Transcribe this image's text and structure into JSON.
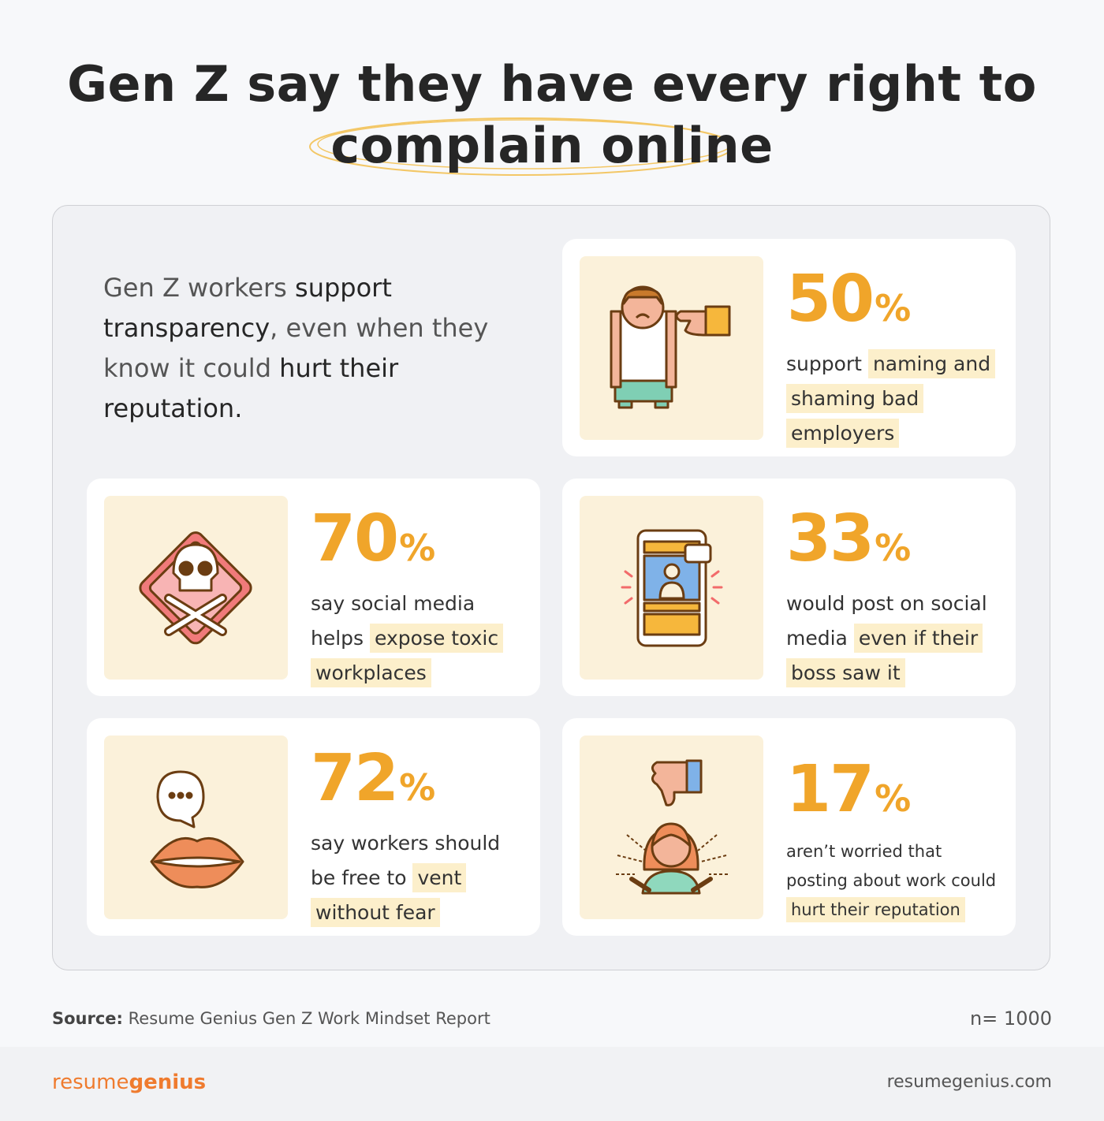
{
  "header": {
    "title_line1": "Gen Z say they have every right to",
    "title_line2": "complain online"
  },
  "intro": [
    {
      "text": "Gen Z workers ",
      "bold": false
    },
    {
      "text": "support transparency",
      "bold": true
    },
    {
      "text": ", even when they know it could ",
      "bold": false
    },
    {
      "text": "hurt their reputation.",
      "bold": true
    }
  ],
  "cards": [
    {
      "value": 50,
      "unit": "%",
      "lead": "support ",
      "highlight": "naming and shaming bad employers"
    },
    {
      "value": 70,
      "unit": "%",
      "lead": "say social media helps ",
      "highlight": "expose toxic workplaces"
    },
    {
      "value": 33,
      "unit": "%",
      "lead": "would post on social media ",
      "highlight": "even if their boss saw it"
    },
    {
      "value": 72,
      "unit": "%",
      "lead": "say workers should be free to ",
      "highlight": "vent without fear"
    },
    {
      "value": 17,
      "unit": "%",
      "lead": "aren’t worried that posting about work could ",
      "highlight": "hurt their reputation"
    }
  ],
  "source": {
    "label": "Source:",
    "text": " Resume Genius Gen Z Work Mindset Report"
  },
  "sample": "n= 1000",
  "footer": {
    "logo_part1": "resume",
    "logo_part2": "genius",
    "url": "resumegenius.com"
  }
}
